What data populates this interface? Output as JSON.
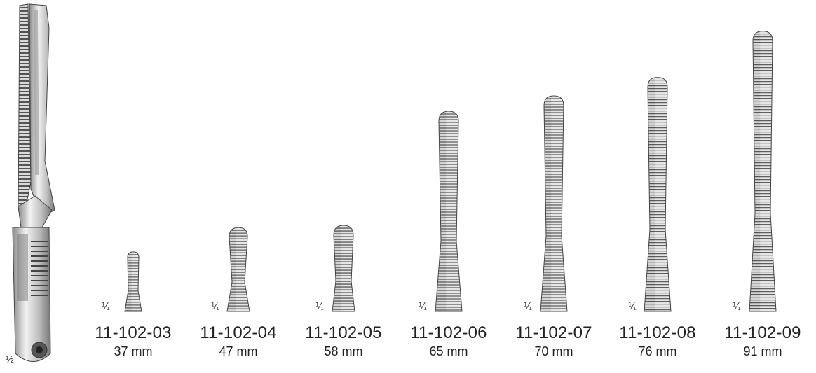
{
  "instrument": {
    "scale_label": "½",
    "icon": "bulldog-clamp-applicator-icon"
  },
  "clamps": [
    {
      "code": "11-102-03",
      "length": "37 mm",
      "scale": "⅟₁"
    },
    {
      "code": "11-102-04",
      "length": "47 mm",
      "scale": "⅟₁"
    },
    {
      "code": "11-102-05",
      "length": "58 mm",
      "scale": "⅟₁"
    },
    {
      "code": "11-102-06",
      "length": "65 mm",
      "scale": "⅟₁"
    },
    {
      "code": "11-102-07",
      "length": "70 mm",
      "scale": "⅟₁"
    },
    {
      "code": "11-102-08",
      "length": "76 mm",
      "scale": "⅟₁"
    },
    {
      "code": "11-102-09",
      "length": "91 mm",
      "scale": "⅟₁"
    }
  ],
  "colors": {
    "metal_light": "#e8e8e8",
    "metal_mid": "#b5b5b5",
    "metal_dark": "#6e6e6e"
  }
}
